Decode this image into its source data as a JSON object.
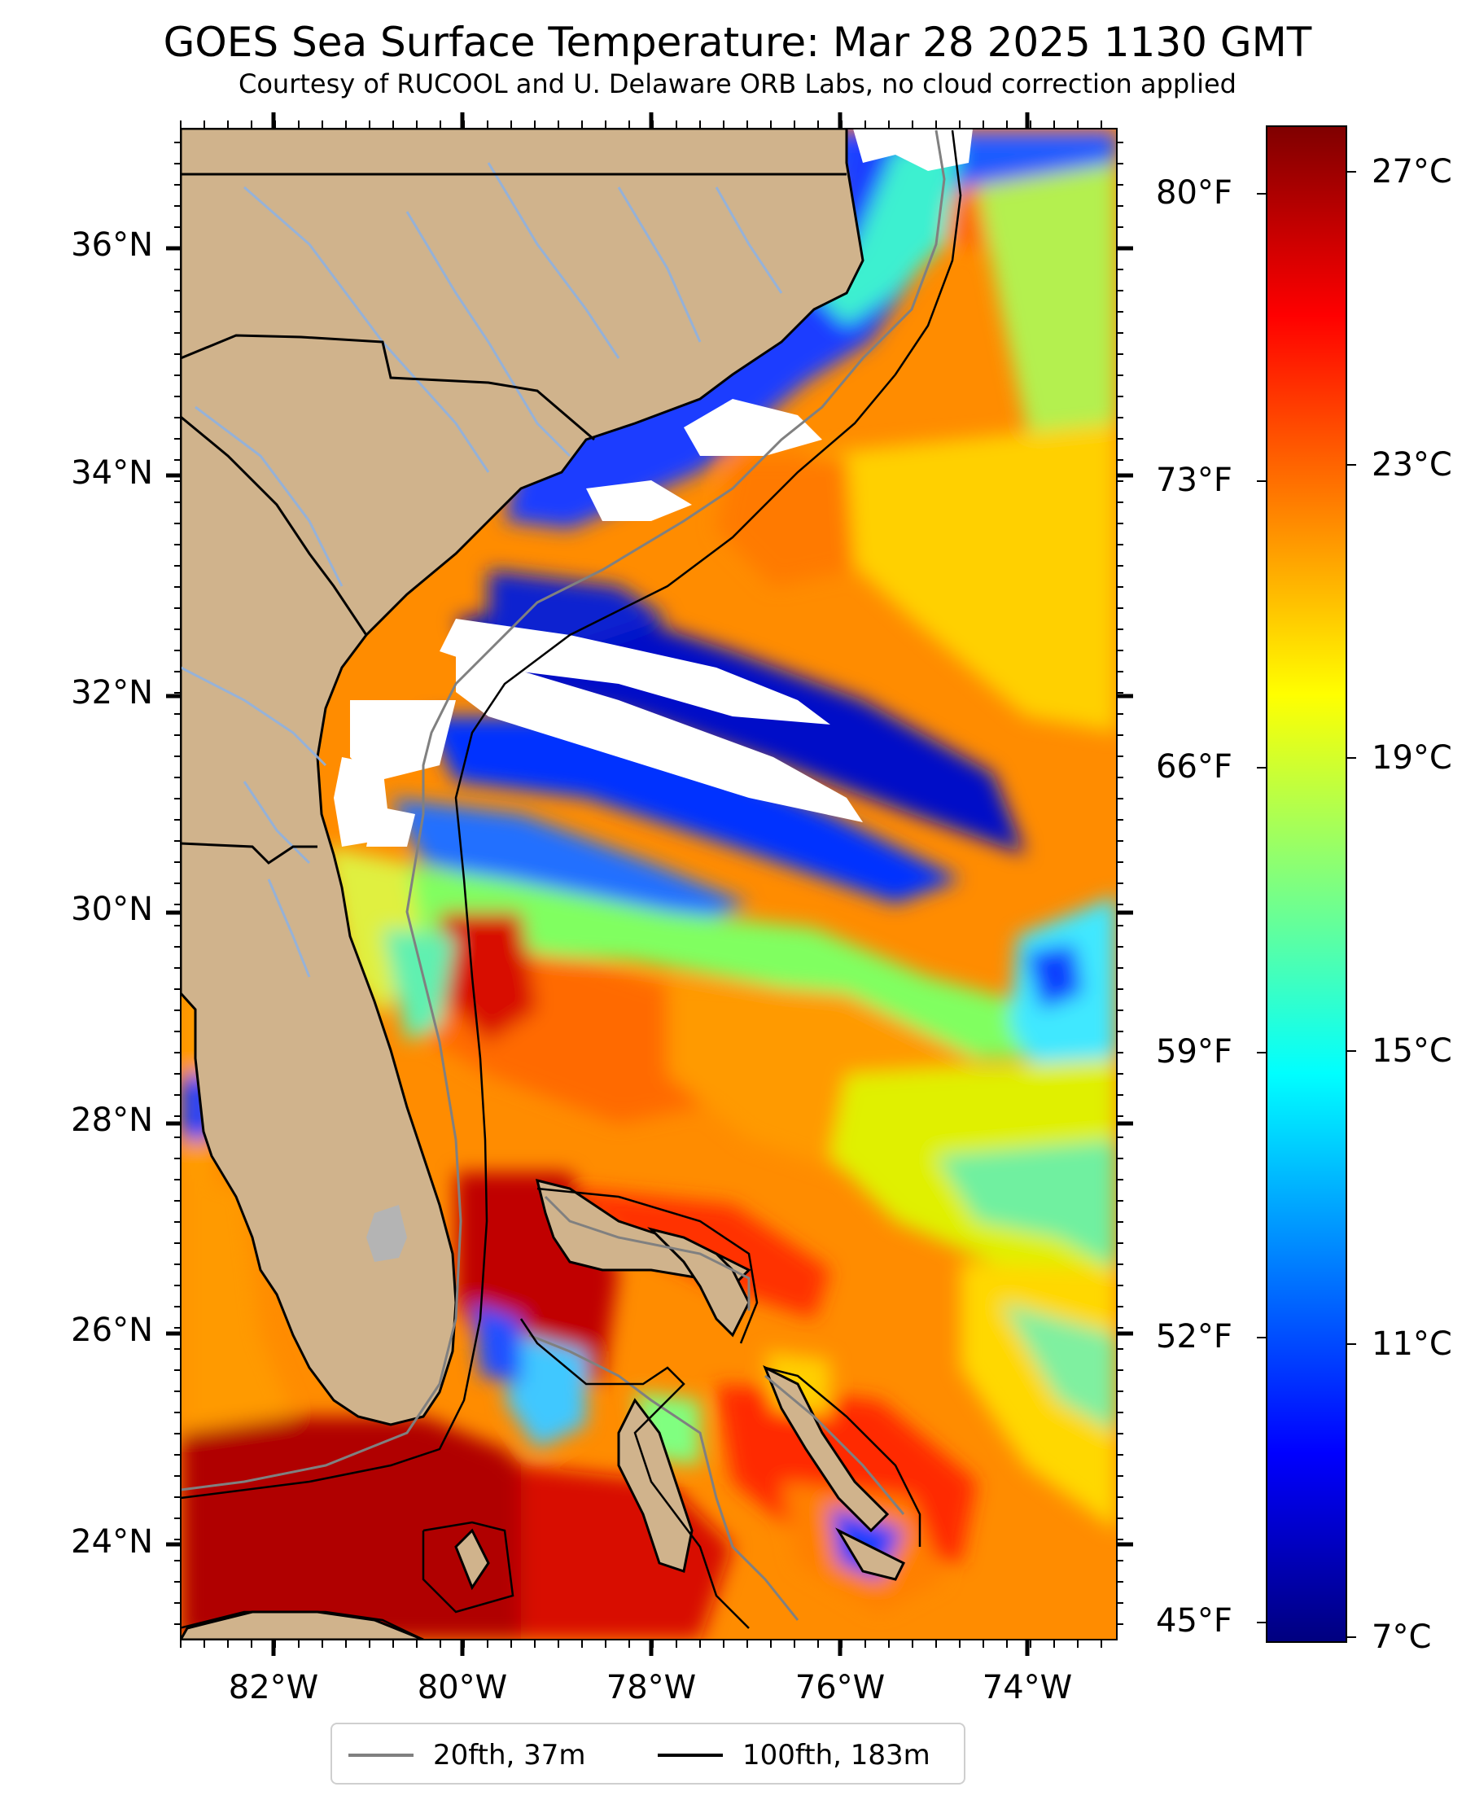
{
  "title": "GOES Sea Surface Temperature: Mar 28 2025 1130 GMT",
  "subtitle": "Courtesy of RUCOOL and U. Delaware ORB Labs, no cloud correction applied",
  "lat_labels": [
    "24°N",
    "26°N",
    "28°N",
    "30°N",
    "32°N",
    "34°N",
    "36°N"
  ],
  "lon_labels": [
    "82°W",
    "80°W",
    "78°W",
    "76°W",
    "74°W"
  ],
  "fahrenheit_labels": [
    "45°F",
    "52°F",
    "59°F",
    "66°F",
    "73°F",
    "80°F"
  ],
  "colorbar": {
    "labels": [
      "7°C",
      "11°C",
      "15°C",
      "19°C",
      "23°C",
      "27°C"
    ],
    "colormap": [
      "#00007f",
      "#0000ff",
      "#007fff",
      "#00ffff",
      "#7fff7f",
      "#ffff00",
      "#ff7f00",
      "#ff0000",
      "#7f0000"
    ]
  },
  "legend": {
    "items": [
      {
        "label": "20fth, 37m",
        "color": "#808080"
      },
      {
        "label": "100fth, 183m",
        "color": "#000000"
      }
    ]
  },
  "colors": {
    "land": "#d0b38c",
    "cloud": "#ffffff",
    "lake": "#b4b4b4",
    "river": "#8fb1e0"
  }
}
